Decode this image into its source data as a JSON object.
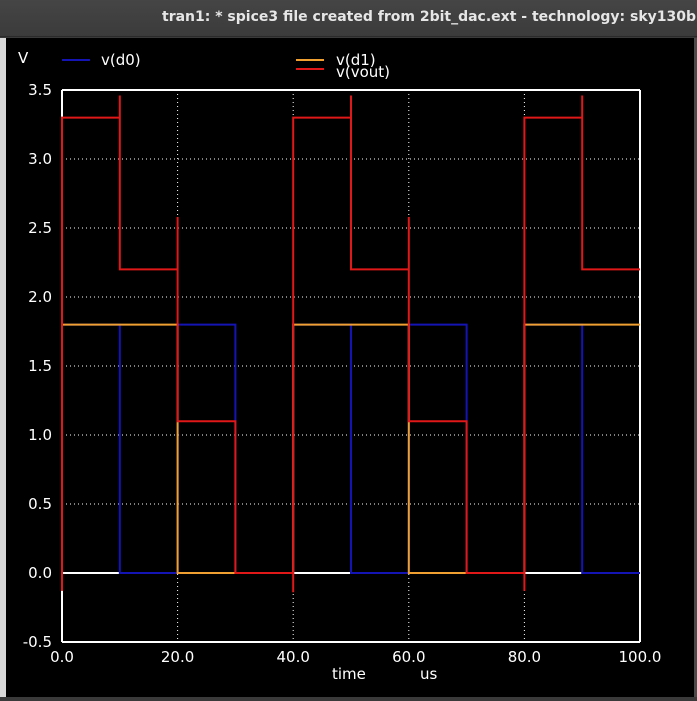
{
  "window": {
    "title": "tran1: * spice3 file created from 2bit_dac.ext - technology: sky130b"
  },
  "colors": {
    "background": "#000000",
    "grid": "#ffffff",
    "text": "#ffffff",
    "v_d0": "#1414b4",
    "v_d1": "#f0a030",
    "v_vout": "#e01818"
  },
  "chart_data": {
    "type": "line",
    "title": "",
    "ylabel": "V",
    "xlabel": "time",
    "xunit": "us",
    "xlim": [
      0,
      100
    ],
    "ylim": [
      -0.5,
      3.5
    ],
    "grid": true,
    "legend_position": "top",
    "xticks": [
      0,
      20,
      40,
      60,
      80,
      100
    ],
    "xtick_labels": [
      "0.0",
      "20.0",
      "40.0",
      "60.0",
      "80.0",
      "100.0"
    ],
    "yticks": [
      -0.5,
      0,
      0.5,
      1,
      1.5,
      2,
      2.5,
      3,
      3.5
    ],
    "ytick_labels": [
      "-0.5",
      "0.0",
      "0.5",
      "1.0",
      "1.5",
      "2.0",
      "2.5",
      "3.0",
      "3.5"
    ],
    "series": [
      {
        "name": "v(d0)",
        "color": "#1414b4",
        "x": [
          0,
          10,
          10,
          20,
          20,
          30,
          30,
          40,
          40,
          50,
          50,
          60,
          60,
          70,
          70,
          80,
          80,
          90,
          90,
          100
        ],
        "y": [
          1.8,
          1.8,
          0,
          0,
          1.8,
          1.8,
          0,
          0,
          1.8,
          1.8,
          0,
          0,
          1.8,
          1.8,
          0,
          0,
          1.8,
          1.8,
          0,
          0
        ]
      },
      {
        "name": "v(d1)",
        "color": "#f0a030",
        "x": [
          0,
          20,
          20,
          40,
          40,
          60,
          60,
          80,
          80,
          100
        ],
        "y": [
          1.8,
          1.8,
          0,
          0,
          1.8,
          1.8,
          0,
          0,
          1.8,
          1.8
        ]
      },
      {
        "name": "v(vout)",
        "color": "#e01818",
        "x": [
          0,
          0,
          0,
          10,
          10,
          10,
          20,
          20,
          20,
          30,
          30,
          40,
          40,
          40,
          50,
          50,
          50,
          60,
          60,
          60,
          70,
          70,
          80,
          80,
          80,
          90,
          90,
          90,
          100
        ],
        "y": [
          -0.13,
          3.3,
          3.3,
          3.3,
          3.46,
          2.2,
          2.2,
          2.58,
          1.1,
          1.1,
          0,
          0,
          -0.14,
          3.3,
          3.3,
          3.46,
          2.2,
          2.2,
          2.58,
          1.1,
          1.1,
          0,
          0,
          -0.13,
          3.3,
          3.3,
          3.46,
          2.2,
          2.2
        ]
      }
    ]
  }
}
